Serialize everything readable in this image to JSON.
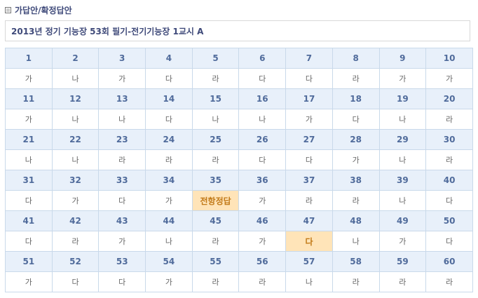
{
  "section_title": "가답안/확정답안",
  "exam_title": "2013년 정기 기능장 53회 필기-전기기능장 1교시 A",
  "highlight_color": "#ffe4b8",
  "answers": [
    "가",
    "나",
    "가",
    "다",
    "라",
    "다",
    "다",
    "라",
    "가",
    "가",
    "가",
    "나",
    "나",
    "다",
    "나",
    "나",
    "가",
    "다",
    "나",
    "라",
    "나",
    "나",
    "라",
    "라",
    "라",
    "다",
    "다",
    "가",
    "나",
    "라",
    "다",
    "가",
    "다",
    "가",
    "전항정답",
    "가",
    "라",
    "라",
    "나",
    "다",
    "다",
    "라",
    "가",
    "나",
    "라",
    "가",
    "다",
    "나",
    "가",
    "다",
    "가",
    "다",
    "다",
    "가",
    "라",
    "라",
    "나",
    "라",
    "라",
    "라"
  ],
  "highlighted": [
    35,
    47
  ]
}
